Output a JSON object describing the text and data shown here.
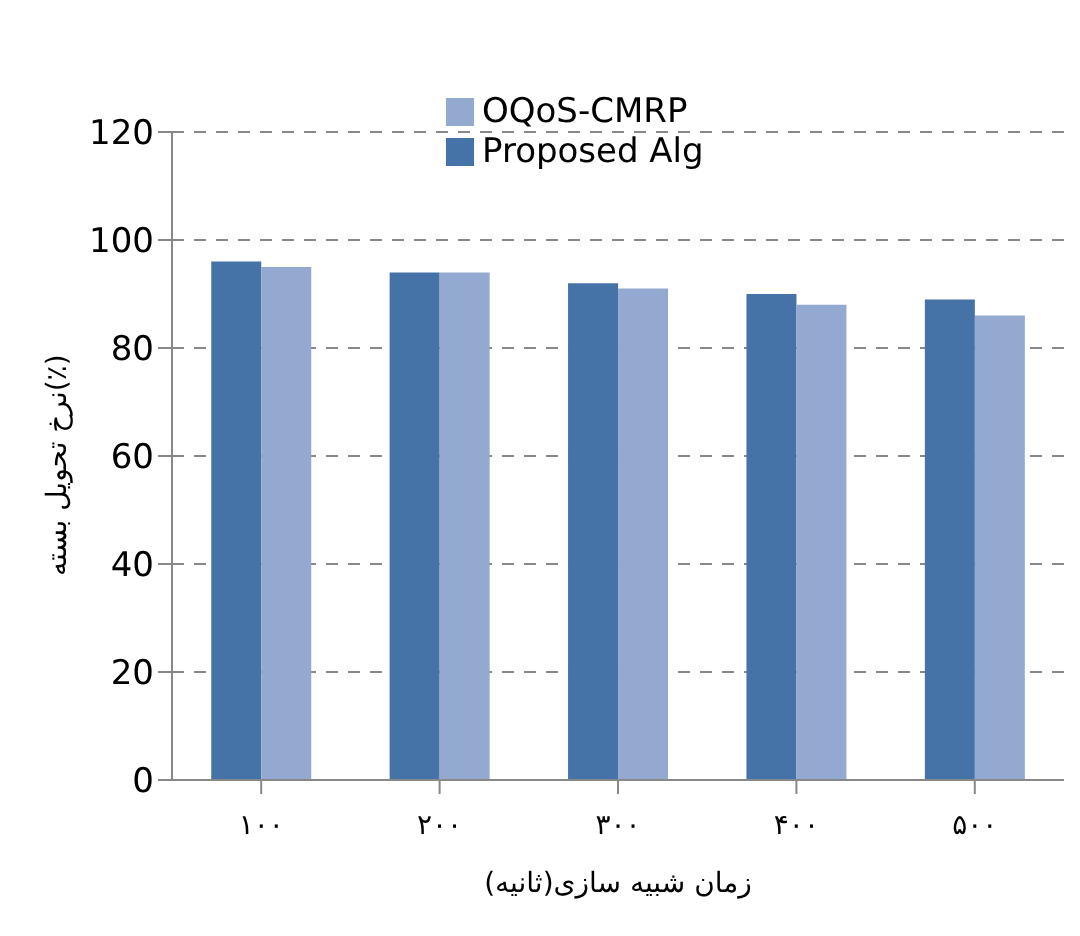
{
  "chart_data": {
    "type": "bar",
    "xlabel": "زمان شبیه سازی(ثانیه)",
    "ylabel": "نرخ تحویل بسته(٪)",
    "categories": [
      "۱۰۰",
      "۲۰۰",
      "۳۰۰",
      "۴۰۰",
      "۵۰۰"
    ],
    "series": [
      {
        "name": "Proposed Alg",
        "color": "#4572a7",
        "values": [
          96,
          94,
          92,
          90,
          89
        ]
      },
      {
        "name": "OQoS-CMRP",
        "color": "#93a9cf",
        "values": [
          95,
          94,
          91,
          88,
          86
        ]
      }
    ],
    "ylim": [
      0,
      120
    ],
    "yticks": [
      0,
      20,
      40,
      60,
      80,
      100,
      120
    ],
    "grid": "y",
    "legend": "top"
  }
}
